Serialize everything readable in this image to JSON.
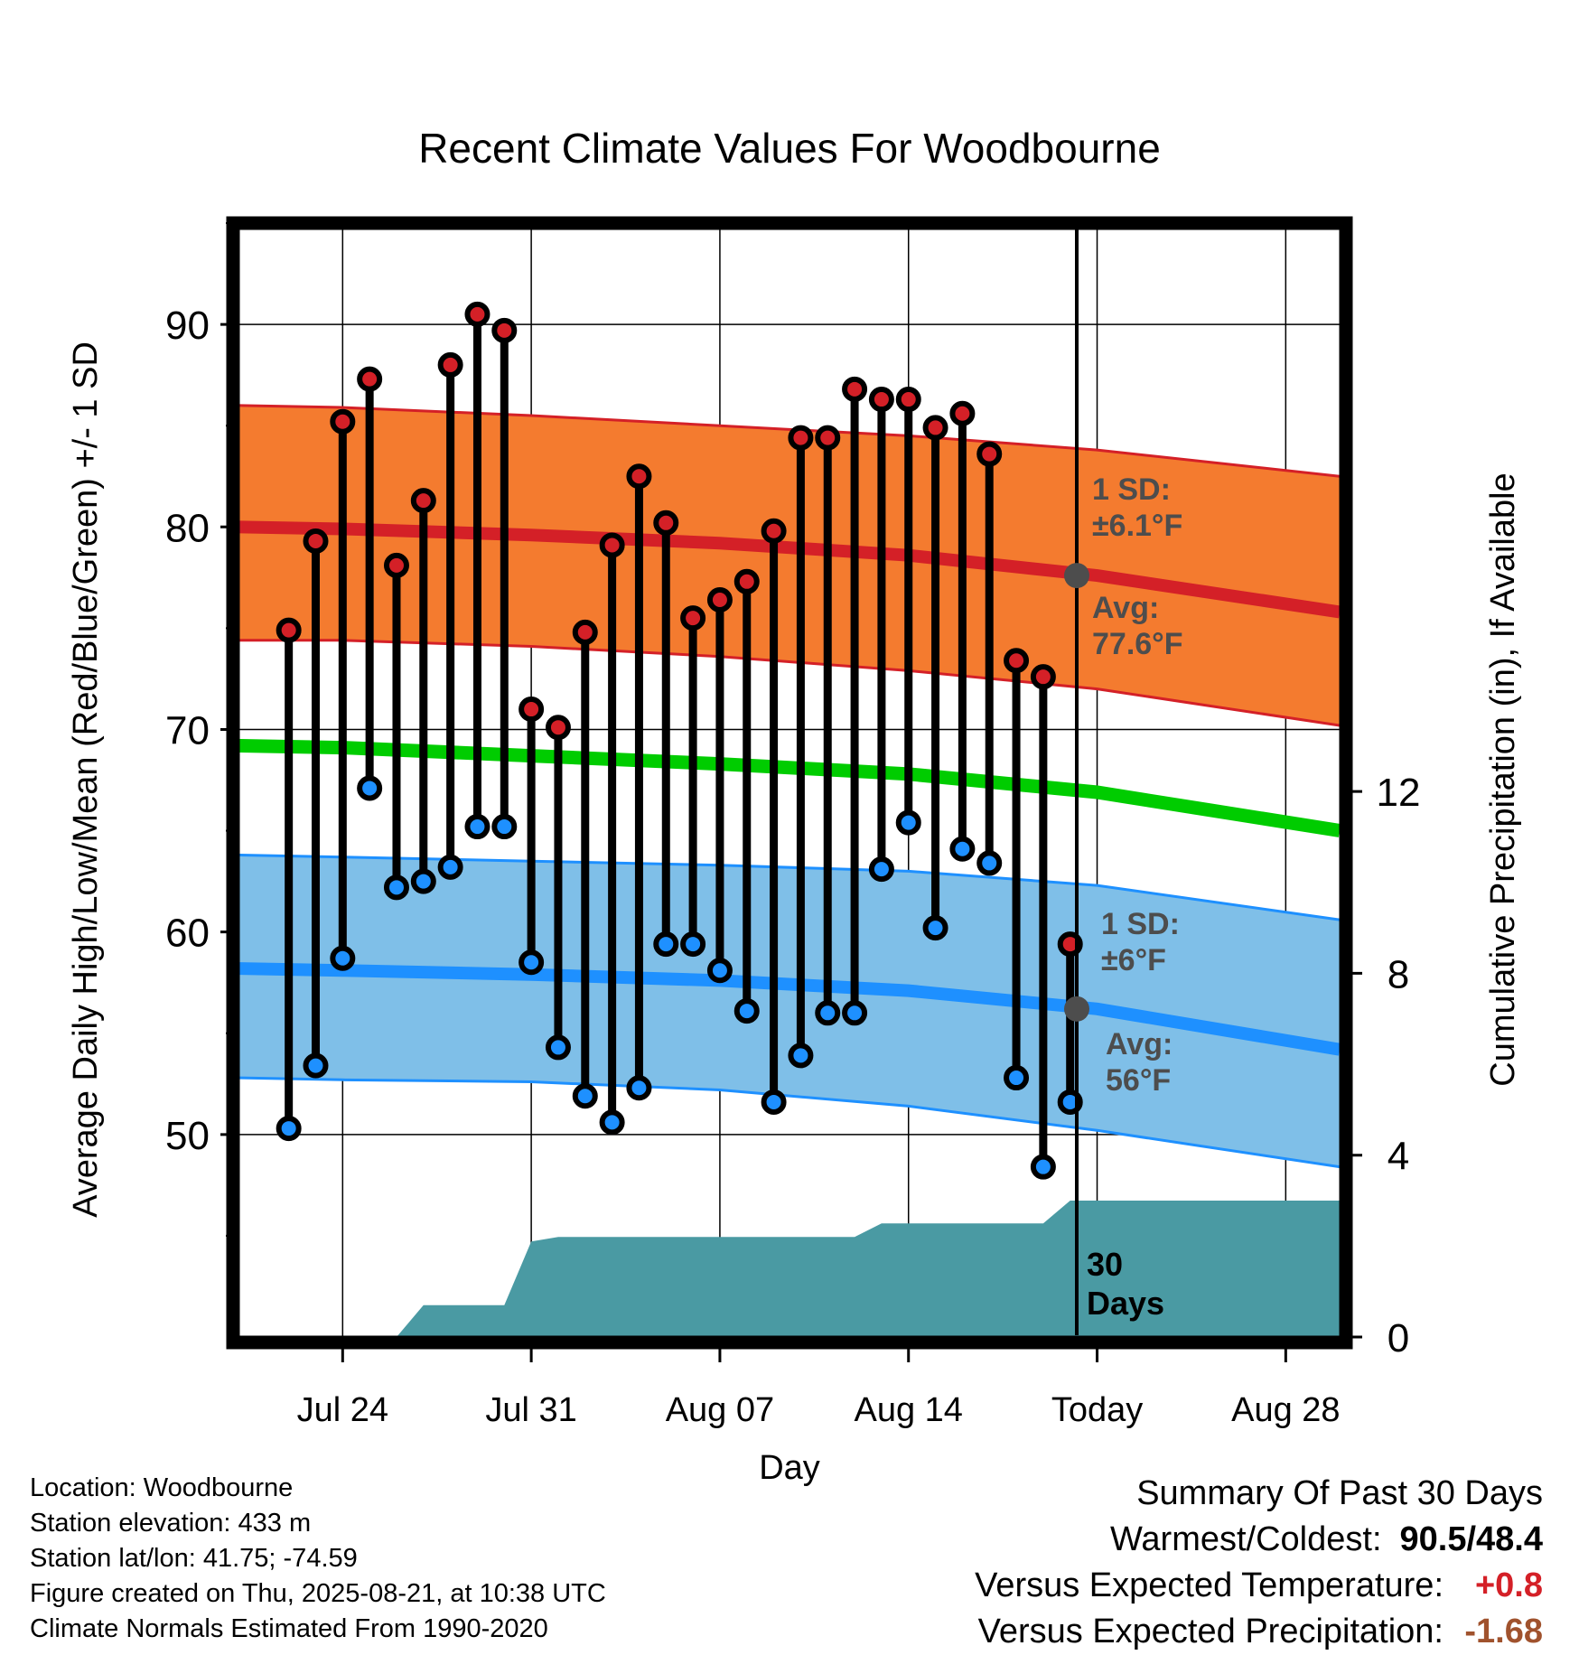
{
  "chart_data": {
    "type": "line",
    "title": "Recent Climate Values For Woodbourne",
    "xlabel": "Day",
    "ylabel": "Average Daily High/Low/Mean (Red/Blue/Green) +/- 1 SD",
    "y2label": "Cumulative Precipitation (in), If Available",
    "x_ticks": [
      "Jul 24",
      "Jul 31",
      "Aug 07",
      "Aug 14",
      "Today",
      "Aug 28"
    ],
    "x_range": [
      "Jul 20",
      "Aug 30"
    ],
    "ylim": [
      40,
      95
    ],
    "y_ticks": [
      50,
      60,
      70,
      80,
      90
    ],
    "y2lim": [
      0,
      24.5
    ],
    "y2_ticks": [
      0,
      4,
      8,
      12
    ],
    "grid": true,
    "days": [
      "Jul 22",
      "Jul 23",
      "Jul 24",
      "Jul 25",
      "Jul 26",
      "Jul 27",
      "Jul 28",
      "Jul 29",
      "Jul 30",
      "Jul 31",
      "Aug 01",
      "Aug 02",
      "Aug 03",
      "Aug 04",
      "Aug 05",
      "Aug 06",
      "Aug 07",
      "Aug 08",
      "Aug 09",
      "Aug 10",
      "Aug 11",
      "Aug 12",
      "Aug 13",
      "Aug 14",
      "Aug 15",
      "Aug 16",
      "Aug 17",
      "Aug 18",
      "Aug 19",
      "Aug 20"
    ],
    "series": [
      {
        "name": "High",
        "color": "#d42027",
        "values": [
          74.9,
          79.3,
          85.2,
          87.3,
          78.1,
          81.3,
          88.0,
          90.5,
          89.7,
          71.0,
          70.1,
          74.8,
          79.1,
          82.5,
          80.2,
          75.5,
          76.4,
          77.3,
          79.8,
          84.4,
          84.4,
          86.8,
          86.3,
          86.3,
          84.9,
          85.6,
          83.6,
          73.4,
          72.6,
          59.4
        ]
      },
      {
        "name": "Low",
        "color": "#1e90ff",
        "values": [
          50.3,
          53.4,
          58.7,
          67.1,
          62.2,
          62.5,
          63.2,
          65.2,
          65.2,
          58.5,
          54.3,
          51.9,
          50.6,
          52.3,
          59.4,
          59.4,
          58.1,
          56.1,
          51.6,
          53.9,
          56.0,
          56.0,
          63.1,
          65.4,
          60.2,
          64.1,
          63.4,
          52.8,
          48.4,
          51.6
        ]
      },
      {
        "name": "Cumulative Precipitation",
        "color": "#4a9aa3",
        "values": [
          0.0,
          0.0,
          0.0,
          0.0,
          0.0,
          0.7,
          0.7,
          0.7,
          0.7,
          2.1,
          2.2,
          2.2,
          2.2,
          2.2,
          2.2,
          2.2,
          2.2,
          2.2,
          2.2,
          2.2,
          2.2,
          2.2,
          2.5,
          2.5,
          2.5,
          2.5,
          2.5,
          2.5,
          2.5,
          3.0
        ]
      }
    ],
    "normals": {
      "x": [
        "Jul 20",
        "Jul 24",
        "Jul 31",
        "Aug 07",
        "Aug 14",
        "Aug 21",
        "Aug 30"
      ],
      "high_avg": [
        80.0,
        79.9,
        79.6,
        79.2,
        78.6,
        77.6,
        75.8
      ],
      "high_sd_upper": [
        86.0,
        85.9,
        85.5,
        85.0,
        84.5,
        83.8,
        82.5
      ],
      "high_sd_lower": [
        74.4,
        74.4,
        74.1,
        73.6,
        72.9,
        72.0,
        70.2
      ],
      "mean_avg": [
        69.2,
        69.1,
        68.7,
        68.3,
        67.8,
        66.9,
        65.0
      ],
      "low_avg": [
        58.2,
        58.1,
        57.9,
        57.6,
        57.1,
        56.2,
        54.2
      ],
      "low_sd_upper": [
        63.8,
        63.7,
        63.5,
        63.3,
        63.0,
        62.3,
        60.6
      ],
      "low_sd_lower": [
        52.8,
        52.7,
        52.6,
        52.2,
        51.4,
        50.2,
        48.4
      ]
    },
    "annotations": {
      "high_sd_label": "1 SD:",
      "high_sd_value": "±6.1°F",
      "high_avg_label": "Avg:",
      "high_avg_value": "77.6°F",
      "low_sd_label": "1 SD:",
      "low_sd_value": "±6°F",
      "low_avg_label": "Avg:",
      "low_avg_value": "56°F",
      "period_number": "30",
      "period_unit": "Days"
    },
    "colors": {
      "high_band": "#f47b2f",
      "high_line": "#d42027",
      "mean_line": "#00cc00",
      "low_band": "#7fbfe8",
      "low_line": "#1e90ff",
      "precip": "#4a9aa3",
      "annotation": "#4d4d4d"
    }
  },
  "info": {
    "location": "Location: Woodbourne",
    "elevation": "Station elevation: 433 m",
    "latlon": "Station lat/lon: 41.75; -74.59",
    "created": "Figure created on Thu, 2025-08-21, at 10:38 UTC",
    "normals": "Climate Normals Estimated From 1990-2020"
  },
  "summary": {
    "title": "Summary Of Past 30 Days",
    "warmest_coldest_label": "Warmest/Coldest:",
    "warmest_coldest_value": "90.5/48.4",
    "temp_label": "Versus Expected Temperature:",
    "temp_value": "+0.8",
    "temp_color": "#d42027",
    "precip_label": "Versus Expected Precipitation:",
    "precip_value": "-1.68",
    "precip_color": "#a0522d"
  }
}
